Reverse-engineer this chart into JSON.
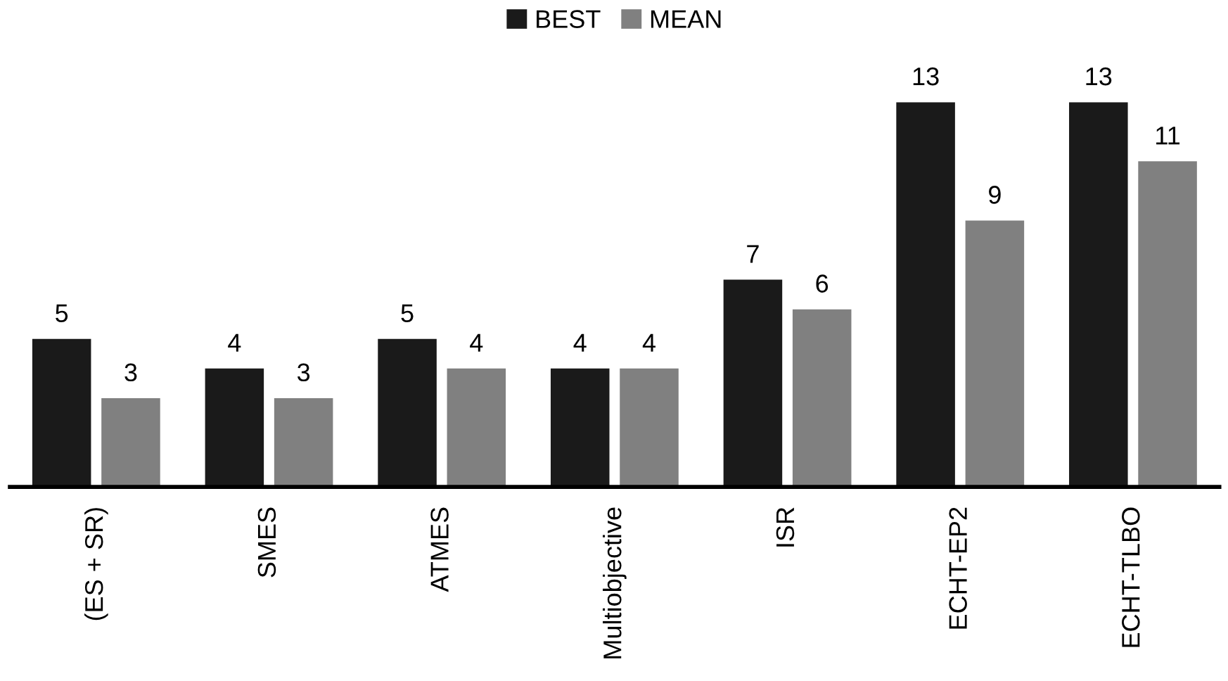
{
  "chart_data": {
    "type": "bar",
    "categories": [
      "(ES + SR)",
      "SMES",
      "ATMES",
      "Multiobjective",
      "ISR",
      "ECHT-EP2",
      "ECHT-TLBO"
    ],
    "series": [
      {
        "name": "BEST",
        "color": "#1a1a1a",
        "values": [
          5,
          4,
          5,
          4,
          7,
          13,
          13
        ]
      },
      {
        "name": "MEAN",
        "color": "#808080",
        "values": [
          3,
          3,
          4,
          4,
          6,
          9,
          11
        ]
      }
    ],
    "data_labels": true,
    "legend": "top",
    "grid": false
  }
}
